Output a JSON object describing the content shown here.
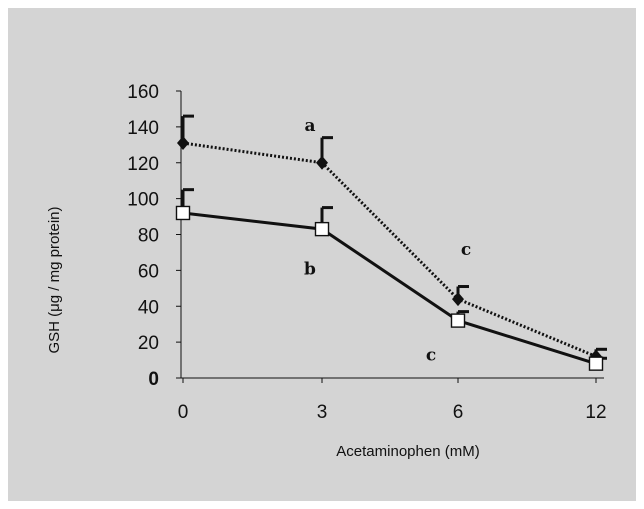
{
  "chart_data": {
    "type": "line",
    "xlabel": "Acetaminophen (mM)",
    "ylabel": "GSH (μg / mg protein)",
    "x_categories": [
      "0",
      "3",
      "6",
      "12"
    ],
    "ylim": [
      0,
      160
    ],
    "y_ticks": [
      "0",
      "20",
      "40",
      "60",
      "80",
      "100",
      "120",
      "140",
      "160"
    ],
    "grid": false,
    "series": [
      {
        "marker": "filled-diamond",
        "line_style": "dotted",
        "color": "#111111",
        "values": [
          131,
          120,
          44,
          12
        ],
        "error_plus": [
          15,
          14,
          7,
          4
        ]
      },
      {
        "marker": "open-square",
        "line_style": "solid",
        "color": "#111111",
        "values": [
          92,
          83,
          32,
          8
        ],
        "error_plus": [
          13,
          12,
          5,
          3
        ]
      }
    ],
    "annotations": [
      {
        "text": "a",
        "x": "3",
        "y": 141
      },
      {
        "text": "b",
        "x": "3",
        "y": 61
      },
      {
        "text": "c",
        "x": "6",
        "y": 72
      },
      {
        "text": "c",
        "x": "6",
        "y": 13
      }
    ]
  }
}
